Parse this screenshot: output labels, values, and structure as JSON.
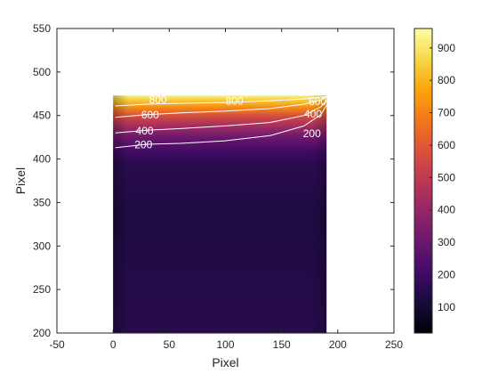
{
  "chart_data": {
    "type": "heatmap",
    "xlabel": "Pixel",
    "ylabel": "Pixel",
    "xlim": [
      -50,
      250
    ],
    "ylim": [
      200,
      550
    ],
    "xticks": [
      -50,
      0,
      50,
      100,
      150,
      200,
      250
    ],
    "yticks": [
      200,
      250,
      300,
      350,
      400,
      450,
      500,
      550
    ],
    "image_extent": {
      "x": [
        0,
        190
      ],
      "y": [
        200,
        473
      ]
    },
    "colormap": "inferno",
    "colorbar": {
      "range": [
        20,
        960
      ],
      "ticks": [
        100,
        200,
        300,
        400,
        500,
        600,
        700,
        800,
        900
      ]
    },
    "contours": [
      {
        "level": 200,
        "points": [
          [
            2,
            413
          ],
          [
            30,
            417
          ],
          [
            60,
            418
          ],
          [
            100,
            421
          ],
          [
            140,
            427
          ],
          [
            170,
            438
          ],
          [
            185,
            451
          ],
          [
            190,
            462
          ]
        ]
      },
      {
        "level": 400,
        "points": [
          [
            2,
            430
          ],
          [
            30,
            433
          ],
          [
            60,
            435
          ],
          [
            100,
            438
          ],
          [
            140,
            442
          ],
          [
            170,
            450
          ],
          [
            185,
            460
          ],
          [
            190,
            467
          ]
        ]
      },
      {
        "level": 600,
        "points": [
          [
            2,
            448
          ],
          [
            30,
            451
          ],
          [
            60,
            453
          ],
          [
            100,
            455
          ],
          [
            140,
            458
          ],
          [
            170,
            463
          ],
          [
            185,
            468
          ],
          [
            190,
            471
          ]
        ]
      },
      {
        "level": 800,
        "points": [
          [
            2,
            461
          ],
          [
            30,
            463
          ],
          [
            60,
            464
          ],
          [
            100,
            465
          ],
          [
            140,
            467
          ],
          [
            170,
            469
          ],
          [
            185,
            471
          ],
          [
            190,
            472
          ]
        ]
      }
    ],
    "contour_labels": [
      {
        "text": "200",
        "x": 27,
        "y": 416.5
      },
      {
        "text": "400",
        "x": 28,
        "y": 432.5
      },
      {
        "text": "600",
        "x": 33,
        "y": 450.5
      },
      {
        "text": "800",
        "x": 40,
        "y": 468
      },
      {
        "text": "200",
        "x": 177,
        "y": 429
      },
      {
        "text": "400",
        "x": 178,
        "y": 451.5
      },
      {
        "text": "800",
        "x": 108,
        "y": 466.5
      },
      {
        "text": "600",
        "x": 182,
        "y": 466
      }
    ]
  }
}
